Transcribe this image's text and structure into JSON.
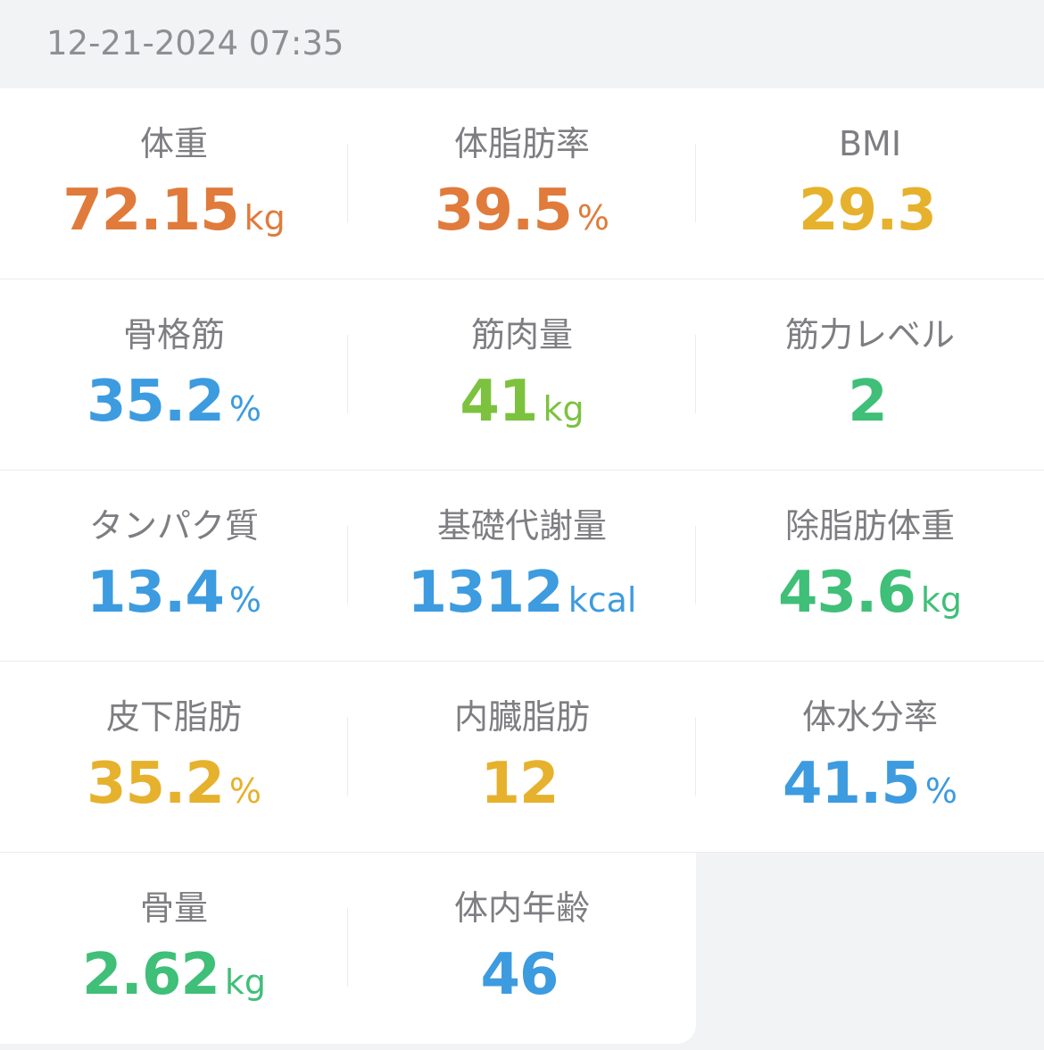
{
  "header": {
    "timestamp": "12-21-2024 07:35"
  },
  "metrics": [
    {
      "label": "体重",
      "value": "72.15",
      "unit": "kg",
      "color": "#e07b3c"
    },
    {
      "label": "体脂肪率",
      "value": "39.5",
      "unit": "%",
      "color": "#e07b3c"
    },
    {
      "label": "BMI",
      "value": "29.3",
      "unit": "",
      "color": "#e6b12c"
    },
    {
      "label": "骨格筋",
      "value": "35.2",
      "unit": "%",
      "color": "#3d9be0"
    },
    {
      "label": "筋肉量",
      "value": "41",
      "unit": "kg",
      "color": "#7cc23f"
    },
    {
      "label": "筋力レベル",
      "value": "2",
      "unit": "",
      "color": "#3fbf78"
    },
    {
      "label": "タンパク質",
      "value": "13.4",
      "unit": "%",
      "color": "#3d9be0"
    },
    {
      "label": "基礎代謝量",
      "value": "1312",
      "unit": "kcal",
      "color": "#3d9be0"
    },
    {
      "label": "除脂肪体重",
      "value": "43.6",
      "unit": "kg",
      "color": "#3fbf78"
    },
    {
      "label": "皮下脂肪",
      "value": "35.2",
      "unit": "%",
      "color": "#e6b12c"
    },
    {
      "label": "内臓脂肪",
      "value": "12",
      "unit": "",
      "color": "#e6b12c"
    },
    {
      "label": "体水分率",
      "value": "41.5",
      "unit": "%",
      "color": "#3d9be0"
    },
    {
      "label": "骨量",
      "value": "2.62",
      "unit": "kg",
      "color": "#3fbf78"
    },
    {
      "label": "体内年齢",
      "value": "46",
      "unit": "",
      "color": "#3d9be0"
    }
  ]
}
